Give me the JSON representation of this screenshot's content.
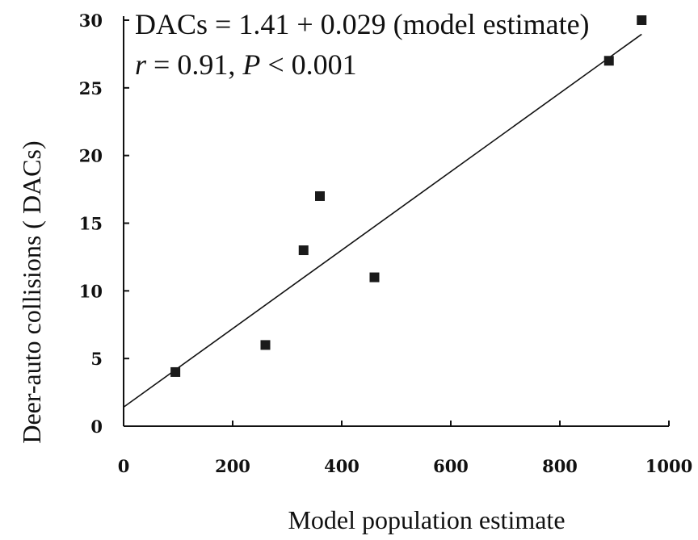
{
  "chart_data": {
    "type": "scatter",
    "title": "",
    "xlabel": "Model population estimate",
    "ylabel": "Deer-auto collisions (   DACs)",
    "xlim": [
      0,
      1000
    ],
    "ylim": [
      0,
      30
    ],
    "x_ticks": [
      "0",
      "200",
      "400",
      "600",
      "800",
      "1000"
    ],
    "y_ticks": [
      "0",
      "5",
      "10",
      "15",
      "20",
      "25",
      "30"
    ],
    "grid": false,
    "legend": "none",
    "annotations": {
      "equation": "DACs = 1.41 + 0.029 (model estimate)",
      "stats_r": "r",
      "stats_r_value": " = 0.91, ",
      "stats_p": "P",
      "stats_p_value": " < 0.001"
    },
    "series": [
      {
        "points": [
          {
            "x": 95,
            "y": 4
          },
          {
            "x": 260,
            "y": 6
          },
          {
            "x": 330,
            "y": 13
          },
          {
            "x": 360,
            "y": 17
          },
          {
            "x": 460,
            "y": 11
          },
          {
            "x": 890,
            "y": 27
          },
          {
            "x": 950,
            "y": 30
          }
        ]
      }
    ],
    "regression": {
      "intercept": 1.41,
      "slope": 0.029,
      "x_range": [
        0,
        950
      ]
    },
    "colors": {
      "marker": "#1a1a1a",
      "line": "#111111",
      "axis": "#111111"
    }
  }
}
